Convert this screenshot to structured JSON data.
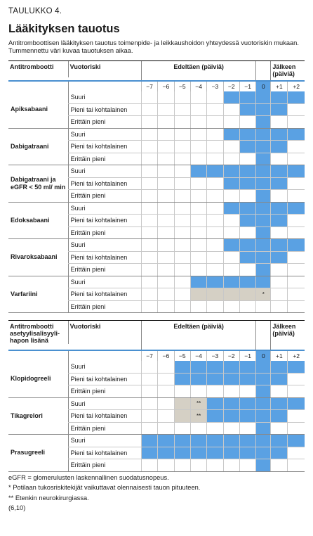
{
  "table_no": "TAULUKKO 4.",
  "title": "Lääkityksen tauotus",
  "subtitle": "Antitromboottisen lääkityksen tauotus toimenpide- ja leikkaushoidon yhteydessä vuotoriskin mukaan. Tummennettu väri kuvaa tauotuksen aikaa.",
  "days": [
    "−7",
    "−6",
    "−5",
    "−4",
    "−3",
    "−2",
    "−1",
    "0",
    "+1",
    "+2"
  ],
  "table1": {
    "col1": "Antitrombootti",
    "col2": "Vuotoriski",
    "before": "Edeltäen (päiviä)",
    "after": "Jälkeen (päiviä)"
  },
  "table2": {
    "col1": "Antitrombootti asetyylisalisyyli-hapon lisänä",
    "col2": "Vuotoriski",
    "before": "Edeltäen (päiviä)",
    "after": "Jälkeen (päiviä)"
  },
  "risks": [
    "Suuri",
    "Pieni tai kohtalainen",
    "Erittäin pieni"
  ],
  "groups1": [
    {
      "drug": "Apiksabaani",
      "rows": [
        {
          "fill": [
            "",
            "",
            "",
            "",
            "",
            "b",
            "b",
            "b",
            "b",
            "b"
          ]
        },
        {
          "fill": [
            "",
            "",
            "",
            "",
            "",
            "",
            "b",
            "b",
            "b",
            ""
          ]
        },
        {
          "fill": [
            "",
            "",
            "",
            "",
            "",
            "",
            "",
            "b",
            "",
            ""
          ]
        }
      ]
    },
    {
      "drug": "Dabigatraani",
      "rows": [
        {
          "fill": [
            "",
            "",
            "",
            "",
            "",
            "b",
            "b",
            "b",
            "b",
            "b"
          ]
        },
        {
          "fill": [
            "",
            "",
            "",
            "",
            "",
            "",
            "b",
            "b",
            "b",
            ""
          ]
        },
        {
          "fill": [
            "",
            "",
            "",
            "",
            "",
            "",
            "",
            "b",
            "",
            ""
          ]
        }
      ]
    },
    {
      "drug": "Dabigatraani ja eGFR < 50 ml/ min",
      "rows": [
        {
          "fill": [
            "",
            "",
            "",
            "b",
            "b",
            "b",
            "b",
            "b",
            "b",
            "b"
          ]
        },
        {
          "fill": [
            "",
            "",
            "",
            "",
            "",
            "b",
            "b",
            "b",
            "b",
            ""
          ]
        },
        {
          "fill": [
            "",
            "",
            "",
            "",
            "",
            "",
            "",
            "b",
            "",
            ""
          ]
        }
      ]
    },
    {
      "drug": "Edoksabaani",
      "rows": [
        {
          "fill": [
            "",
            "",
            "",
            "",
            "",
            "b",
            "b",
            "b",
            "b",
            "b"
          ]
        },
        {
          "fill": [
            "",
            "",
            "",
            "",
            "",
            "",
            "b",
            "b",
            "b",
            ""
          ]
        },
        {
          "fill": [
            "",
            "",
            "",
            "",
            "",
            "",
            "",
            "b",
            "",
            ""
          ]
        }
      ]
    },
    {
      "drug": "Rivaroksabaani",
      "rows": [
        {
          "fill": [
            "",
            "",
            "",
            "",
            "",
            "b",
            "b",
            "b",
            "b",
            "b"
          ]
        },
        {
          "fill": [
            "",
            "",
            "",
            "",
            "",
            "",
            "b",
            "b",
            "b",
            ""
          ]
        },
        {
          "fill": [
            "",
            "",
            "",
            "",
            "",
            "",
            "",
            "b",
            "",
            ""
          ]
        }
      ]
    },
    {
      "drug": "Varfariini",
      "rows": [
        {
          "fill": [
            "",
            "",
            "",
            "b",
            "b",
            "b",
            "b",
            "b",
            "",
            ""
          ]
        },
        {
          "fill": [
            "",
            "",
            "",
            "g",
            "g",
            "g",
            "g",
            "g",
            "",
            ""
          ],
          "marks": {
            "7": "*"
          }
        },
        {
          "fill": [
            "",
            "",
            "",
            "",
            "",
            "",
            "",
            "",
            "",
            ""
          ]
        }
      ]
    }
  ],
  "groups2": [
    {
      "drug": "Klopidogreeli",
      "rows": [
        {
          "fill": [
            "",
            "",
            "b",
            "b",
            "b",
            "b",
            "b",
            "b",
            "b",
            "b"
          ]
        },
        {
          "fill": [
            "",
            "",
            "b",
            "b",
            "b",
            "b",
            "b",
            "b",
            "b",
            ""
          ]
        },
        {
          "fill": [
            "",
            "",
            "",
            "",
            "",
            "",
            "",
            "b",
            "",
            ""
          ]
        }
      ]
    },
    {
      "drug": "Tikagrelori",
      "rows": [
        {
          "fill": [
            "",
            "",
            "g",
            "g",
            "b",
            "b",
            "b",
            "b",
            "b",
            "b"
          ],
          "marks": {
            "3": "**"
          }
        },
        {
          "fill": [
            "",
            "",
            "g",
            "g",
            "b",
            "b",
            "b",
            "b",
            "b",
            ""
          ],
          "marks": {
            "3": "**"
          }
        },
        {
          "fill": [
            "",
            "",
            "",
            "",
            "",
            "",
            "",
            "b",
            "",
            ""
          ]
        }
      ]
    },
    {
      "drug": "Prasugreeli",
      "rows": [
        {
          "fill": [
            "b",
            "b",
            "b",
            "b",
            "b",
            "b",
            "b",
            "b",
            "b",
            "b"
          ]
        },
        {
          "fill": [
            "b",
            "b",
            "b",
            "b",
            "b",
            "b",
            "b",
            "b",
            "b",
            ""
          ]
        },
        {
          "fill": [
            "",
            "",
            "",
            "",
            "",
            "",
            "",
            "b",
            "",
            ""
          ]
        }
      ]
    }
  ],
  "footer": [
    "eGFR = glomerulusten laskennallinen suodatusnopeus.",
    "* Potilaan tukosriskitekijät vaikuttavat olennaisesti tauon pituuteen.",
    "** Etenkin neurokirurgiassa.",
    "(6,10)"
  ],
  "colors": {
    "fill": "#5aa1e3",
    "gray": "#d5d0c5"
  }
}
